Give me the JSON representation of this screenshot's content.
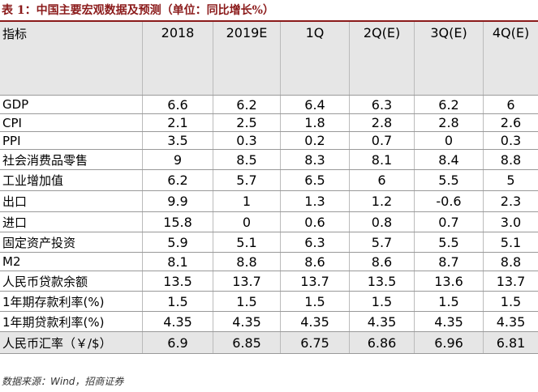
{
  "title": "表 1：中国主要宏观数据及预测（单位：同比增长%）",
  "table": {
    "header": [
      "指标",
      "2018",
      "2019E",
      "1Q",
      "2Q(E)",
      "3Q(E)",
      "4Q(E)"
    ],
    "rows": [
      [
        "GDP",
        "6.6",
        "6.2",
        "6.4",
        "6.3",
        "6.2",
        "6"
      ],
      [
        "CPI",
        "2.1",
        "2.5",
        "1.8",
        "2.8",
        "2.8",
        "2.6"
      ],
      [
        "PPI",
        "3.5",
        "0.3",
        "0.2",
        "0.7",
        "0",
        "0.3"
      ],
      [
        "社会消费品零售",
        "9",
        "8.5",
        "8.3",
        "8.1",
        "8.4",
        "8.8"
      ],
      [
        "工业增加值",
        "6.2",
        "5.7",
        "6.5",
        "6",
        "5.5",
        "5"
      ],
      [
        "出口",
        "9.9",
        "1",
        "1.3",
        "1.2",
        "-0.6",
        "2.3"
      ],
      [
        "进口",
        "15.8",
        "0",
        "0.6",
        "0.8",
        "0.7",
        "3.0"
      ],
      [
        "固定资产投资",
        "5.9",
        "5.1",
        "6.3",
        "5.7",
        "5.5",
        "5.1"
      ],
      [
        "M2",
        "8.1",
        "8.8",
        "8.6",
        "8.6",
        "8.7",
        "8.8"
      ],
      [
        "人民币贷款余额",
        "13.5",
        "13.7",
        "13.7",
        "13.5",
        "13.6",
        "13.7"
      ],
      [
        "1年期存款利率(%)",
        "1.5",
        "1.5",
        "1.5",
        "1.5",
        "1.5",
        "1.5"
      ],
      [
        "1年期贷款利率(%)",
        "4.35",
        "4.35",
        "4.35",
        "4.35",
        "4.35",
        "4.35"
      ],
      [
        "人民币汇率（￥/$）",
        "6.9",
        "6.85",
        "6.75",
        "6.86",
        "6.96",
        "6.81"
      ]
    ]
  },
  "source": "数据来源：Wind，招商证券"
}
